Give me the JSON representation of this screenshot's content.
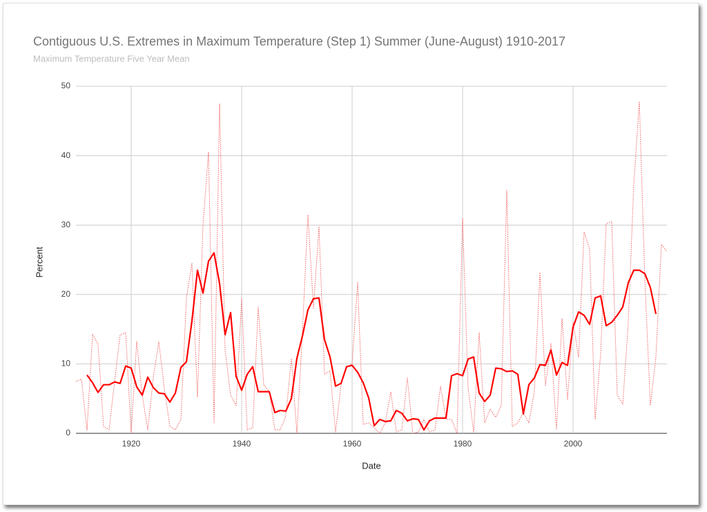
{
  "chart_data": {
    "type": "line",
    "title": "Contiguous U.S. Extremes in Maximum Temperature (Step 1) Summer (June-August) 1910-2017",
    "subtitle": "Maximum Temperature Five Year Mean",
    "x_label": "Date",
    "y_label": "Percent",
    "xlim": [
      1910,
      2017
    ],
    "ylim": [
      0,
      50
    ],
    "xticks": [
      1920,
      1940,
      1960,
      1980,
      2000
    ],
    "yticks": [
      0,
      10,
      20,
      30,
      40,
      50
    ],
    "grid": true,
    "x": [
      1910,
      1911,
      1912,
      1913,
      1914,
      1915,
      1916,
      1917,
      1918,
      1919,
      1920,
      1921,
      1922,
      1923,
      1924,
      1925,
      1926,
      1927,
      1928,
      1929,
      1930,
      1931,
      1932,
      1933,
      1934,
      1935,
      1936,
      1937,
      1938,
      1939,
      1940,
      1941,
      1942,
      1943,
      1944,
      1945,
      1946,
      1947,
      1948,
      1949,
      1950,
      1951,
      1952,
      1953,
      1954,
      1955,
      1956,
      1957,
      1958,
      1959,
      1960,
      1961,
      1962,
      1963,
      1964,
      1965,
      1966,
      1967,
      1968,
      1969,
      1970,
      1971,
      1972,
      1973,
      1974,
      1975,
      1976,
      1977,
      1978,
      1979,
      1980,
      1981,
      1982,
      1983,
      1984,
      1985,
      1986,
      1987,
      1988,
      1989,
      1990,
      1991,
      1992,
      1993,
      1994,
      1995,
      1996,
      1997,
      1998,
      1999,
      2000,
      2001,
      2002,
      2003,
      2004,
      2005,
      2006,
      2007,
      2008,
      2009,
      2010,
      2011,
      2012,
      2013,
      2014,
      2015,
      2016,
      2017
    ],
    "series": [
      {
        "color": "#f26060",
        "dash": "dotted",
        "width": 1,
        "values": [
          7.5,
          7.8,
          0.5,
          14.3,
          12.8,
          1.0,
          0.5,
          7.5,
          14.2,
          14.5,
          0,
          13.2,
          5.5,
          0.5,
          8,
          13.2,
          6.5,
          1,
          0.5,
          2,
          19.5,
          24.5,
          5.2,
          30,
          40.5,
          1.5,
          47.5,
          12,
          5.5,
          4,
          19.5,
          0.5,
          0.8,
          18.2,
          7,
          6,
          0.5,
          0.5,
          2.5,
          10.8,
          0,
          14.5,
          31.5,
          18,
          29.8,
          8.5,
          9,
          0.2,
          7,
          9.5,
          10,
          21.8,
          1.3,
          1.5,
          0.8,
          0,
          1.5,
          6,
          0.2,
          0.5,
          8,
          0,
          0.2,
          2,
          0.2,
          0.5,
          6.8,
          2,
          2,
          0,
          31,
          6.5,
          0.2,
          14.5,
          1.5,
          3.5,
          2.3,
          4,
          35,
          1,
          1.5,
          3,
          1.5,
          6,
          23.2,
          6.8,
          13,
          0.5,
          16.5,
          4.8,
          16,
          11,
          29,
          26.5,
          2,
          11.5,
          30.2,
          30.5,
          5.5,
          4.2,
          16,
          36,
          47.8,
          22,
          4,
          11,
          27.2,
          26.2
        ]
      },
      {
        "color": "#ff0000",
        "dash": "solid",
        "width": 2.2,
        "values": [
          null,
          null,
          8.4,
          7.3,
          5.9,
          7.0,
          7.0,
          7.4,
          7.2,
          9.7,
          9.4,
          6.7,
          5.5,
          8.1,
          6.6,
          5.8,
          5.7,
          4.5,
          5.8,
          9.5,
          10.3,
          16.2,
          23.5,
          20.2,
          24.8,
          26.0,
          21.6,
          14.2,
          17.4,
          8.2,
          6.2,
          8.5,
          9.6,
          6.0,
          6.0,
          6.0,
          3.0,
          3.3,
          3.2,
          5.0,
          10.8,
          14,
          17.8,
          19.4,
          19.5,
          13.5,
          11,
          6.8,
          7.2,
          9.6,
          9.8,
          8.8,
          7.3,
          5.1,
          1.1,
          2.0,
          1.7,
          1.8,
          3.3,
          2.9,
          1.8,
          2.1,
          2.0,
          0.5,
          1.8,
          2.2,
          2.2,
          2.2,
          8.3,
          8.6,
          8.3,
          10.7,
          11.0,
          5.8,
          4.6,
          5.5,
          9.4,
          9.3,
          8.9,
          9.0,
          8.5,
          2.8,
          7.0,
          8.0,
          9.9,
          9.8,
          12.0,
          8.4,
          10.2,
          9.8,
          15.3,
          17.5,
          17.0,
          15.7,
          19.5,
          19.8,
          15.5,
          16.0,
          17,
          18.2,
          21.7,
          23.5,
          23.5,
          23.0,
          21.0,
          17.2,
          null,
          null
        ]
      }
    ]
  }
}
